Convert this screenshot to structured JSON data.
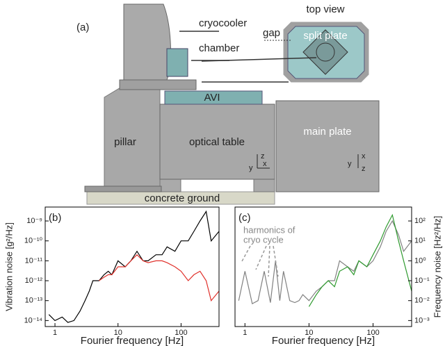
{
  "diagram": {
    "panel": "(a)",
    "labels": {
      "cryocooler": "cryocooler",
      "chamber": "chamber",
      "gap": "gap",
      "split_plate": "split plate",
      "top_view": "top view",
      "avi": "AVI",
      "pillar": "pillar",
      "optical_table": "optical table",
      "main_plate": "main plate",
      "concrete_ground": "concrete ground"
    },
    "side_axes": [
      "z",
      "x",
      "y"
    ],
    "top_axes": [
      "x",
      "y",
      "z"
    ]
  },
  "chart_data": [
    {
      "type": "line",
      "panel": "(b)",
      "xlabel": "Fourier frequency [Hz]",
      "ylabel": "Vibration noise [g²/Hz]",
      "xlog": true,
      "ylog": true,
      "yaxis_side": "left",
      "xlim": [
        0.7,
        400
      ],
      "ylim": [
        5e-15,
        5e-09
      ],
      "xticks": [
        1,
        10,
        100
      ],
      "yticks": [
        {
          "value": 1e-14,
          "label": "10⁻¹⁴"
        },
        {
          "value": 1e-13,
          "label": "10⁻¹³"
        },
        {
          "value": 1e-12,
          "label": "10⁻¹²"
        },
        {
          "value": 1e-11,
          "label": "10⁻¹¹"
        },
        {
          "value": 1e-10,
          "label": "10⁻¹⁰"
        },
        {
          "value": 1e-09,
          "label": "10⁻⁹"
        }
      ],
      "x": [
        0.8,
        1,
        1.3,
        1.6,
        2,
        2.5,
        3,
        3.5,
        4,
        5,
        6,
        7,
        8,
        10,
        13,
        16,
        20,
        25,
        30,
        40,
        50,
        60,
        80,
        100,
        130,
        160,
        200,
        250,
        300,
        400
      ],
      "series": [
        {
          "color": "#000000",
          "values": [
            2e-14,
            1e-14,
            1.5e-14,
            8e-15,
            1e-14,
            3e-14,
            1e-13,
            3e-13,
            1e-12,
            1e-12,
            2e-12,
            3e-12,
            2e-12,
            1e-11,
            5e-12,
            1e-11,
            3e-11,
            1e-11,
            1e-11,
            2e-11,
            2e-11,
            5e-11,
            3e-11,
            1e-10,
            1e-10,
            3e-10,
            1e-09,
            3e-09,
            1e-10,
            3e-10
          ]
        },
        {
          "color": "#e0302a",
          "values": [
            null,
            null,
            null,
            null,
            null,
            null,
            null,
            null,
            null,
            1e-12,
            1.5e-12,
            2e-12,
            2e-12,
            5e-12,
            5e-12,
            1e-11,
            2e-11,
            1e-11,
            8e-12,
            1e-11,
            1e-11,
            8e-12,
            5e-12,
            3e-12,
            1e-12,
            2e-12,
            3e-12,
            1e-12,
            1e-13,
            3e-13
          ]
        }
      ]
    },
    {
      "type": "line",
      "panel": "(c)",
      "xlabel": "Fourier frequency [Hz]",
      "ylabel": "Frequency noise [Hz²/Hz]",
      "xlog": true,
      "ylog": true,
      "yaxis_side": "right",
      "annotation": [
        "harmonics of",
        "cryo cycle"
      ],
      "xlim": [
        0.7,
        400
      ],
      "ylim": [
        0.0005,
        500
      ],
      "xticks": [
        1,
        10,
        100
      ],
      "yticks": [
        {
          "value": 0.001,
          "label": "10⁻³"
        },
        {
          "value": 0.01,
          "label": "10⁻²"
        },
        {
          "value": 0.1,
          "label": "10⁻¹"
        },
        {
          "value": 1,
          "label": "10⁰"
        },
        {
          "value": 10,
          "label": "10¹"
        },
        {
          "value": 100,
          "label": "10²"
        }
      ],
      "x": [
        0.8,
        1,
        1.3,
        1.6,
        2,
        2.5,
        3,
        3.5,
        4,
        5,
        6,
        7,
        8,
        10,
        13,
        16,
        20,
        25,
        30,
        40,
        50,
        60,
        80,
        100,
        130,
        160,
        200,
        250,
        300,
        400
      ],
      "series": [
        {
          "color": "#808080",
          "values": [
            0.01,
            0.3,
            0.007,
            0.01,
            0.3,
            0.008,
            1,
            0.01,
            0.3,
            0.01,
            0.008,
            0.01,
            0.02,
            0.01,
            0.03,
            0.05,
            0.1,
            0.1,
            1,
            0.5,
            0.3,
            1,
            0.5,
            1,
            5,
            30,
            100,
            20,
            3,
            10
          ]
        },
        {
          "color": "#2e9a2e",
          "values": [
            null,
            null,
            null,
            null,
            null,
            null,
            null,
            null,
            null,
            null,
            null,
            null,
            null,
            0.005,
            0.02,
            0.05,
            0.1,
            0.05,
            0.3,
            0.5,
            0.2,
            1,
            0.5,
            2,
            10,
            50,
            200,
            10,
            1,
            0.03
          ]
        }
      ]
    }
  ]
}
